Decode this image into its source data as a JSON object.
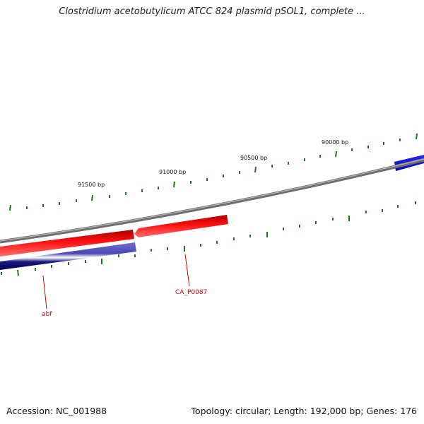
{
  "header": {
    "title": "Clostridium acetobutylicum ATCC 824 plasmid pSOL1, complete ..."
  },
  "scale_labels": [
    "90000 bp",
    "90500 bp",
    "91000 bp",
    "91500 bp"
  ],
  "genes": [
    {
      "label": "abf",
      "strand": "reverse",
      "color": "#3a3a9a"
    },
    {
      "label": "CA_P0087",
      "strand": "forward",
      "color": "#e00000"
    }
  ],
  "footer": {
    "accession": "Accession: NC_001988",
    "summary": "Topology: circular; Length: 192,000 bp; Genes: 176"
  },
  "colors": {
    "backbone": "#808080",
    "forward_gene": "#e00000",
    "reverse_gene": "#1f1f8f",
    "blue_gene": "#0000ee",
    "ticks": "#1a7a1a",
    "gene_label": "#cc0000"
  }
}
